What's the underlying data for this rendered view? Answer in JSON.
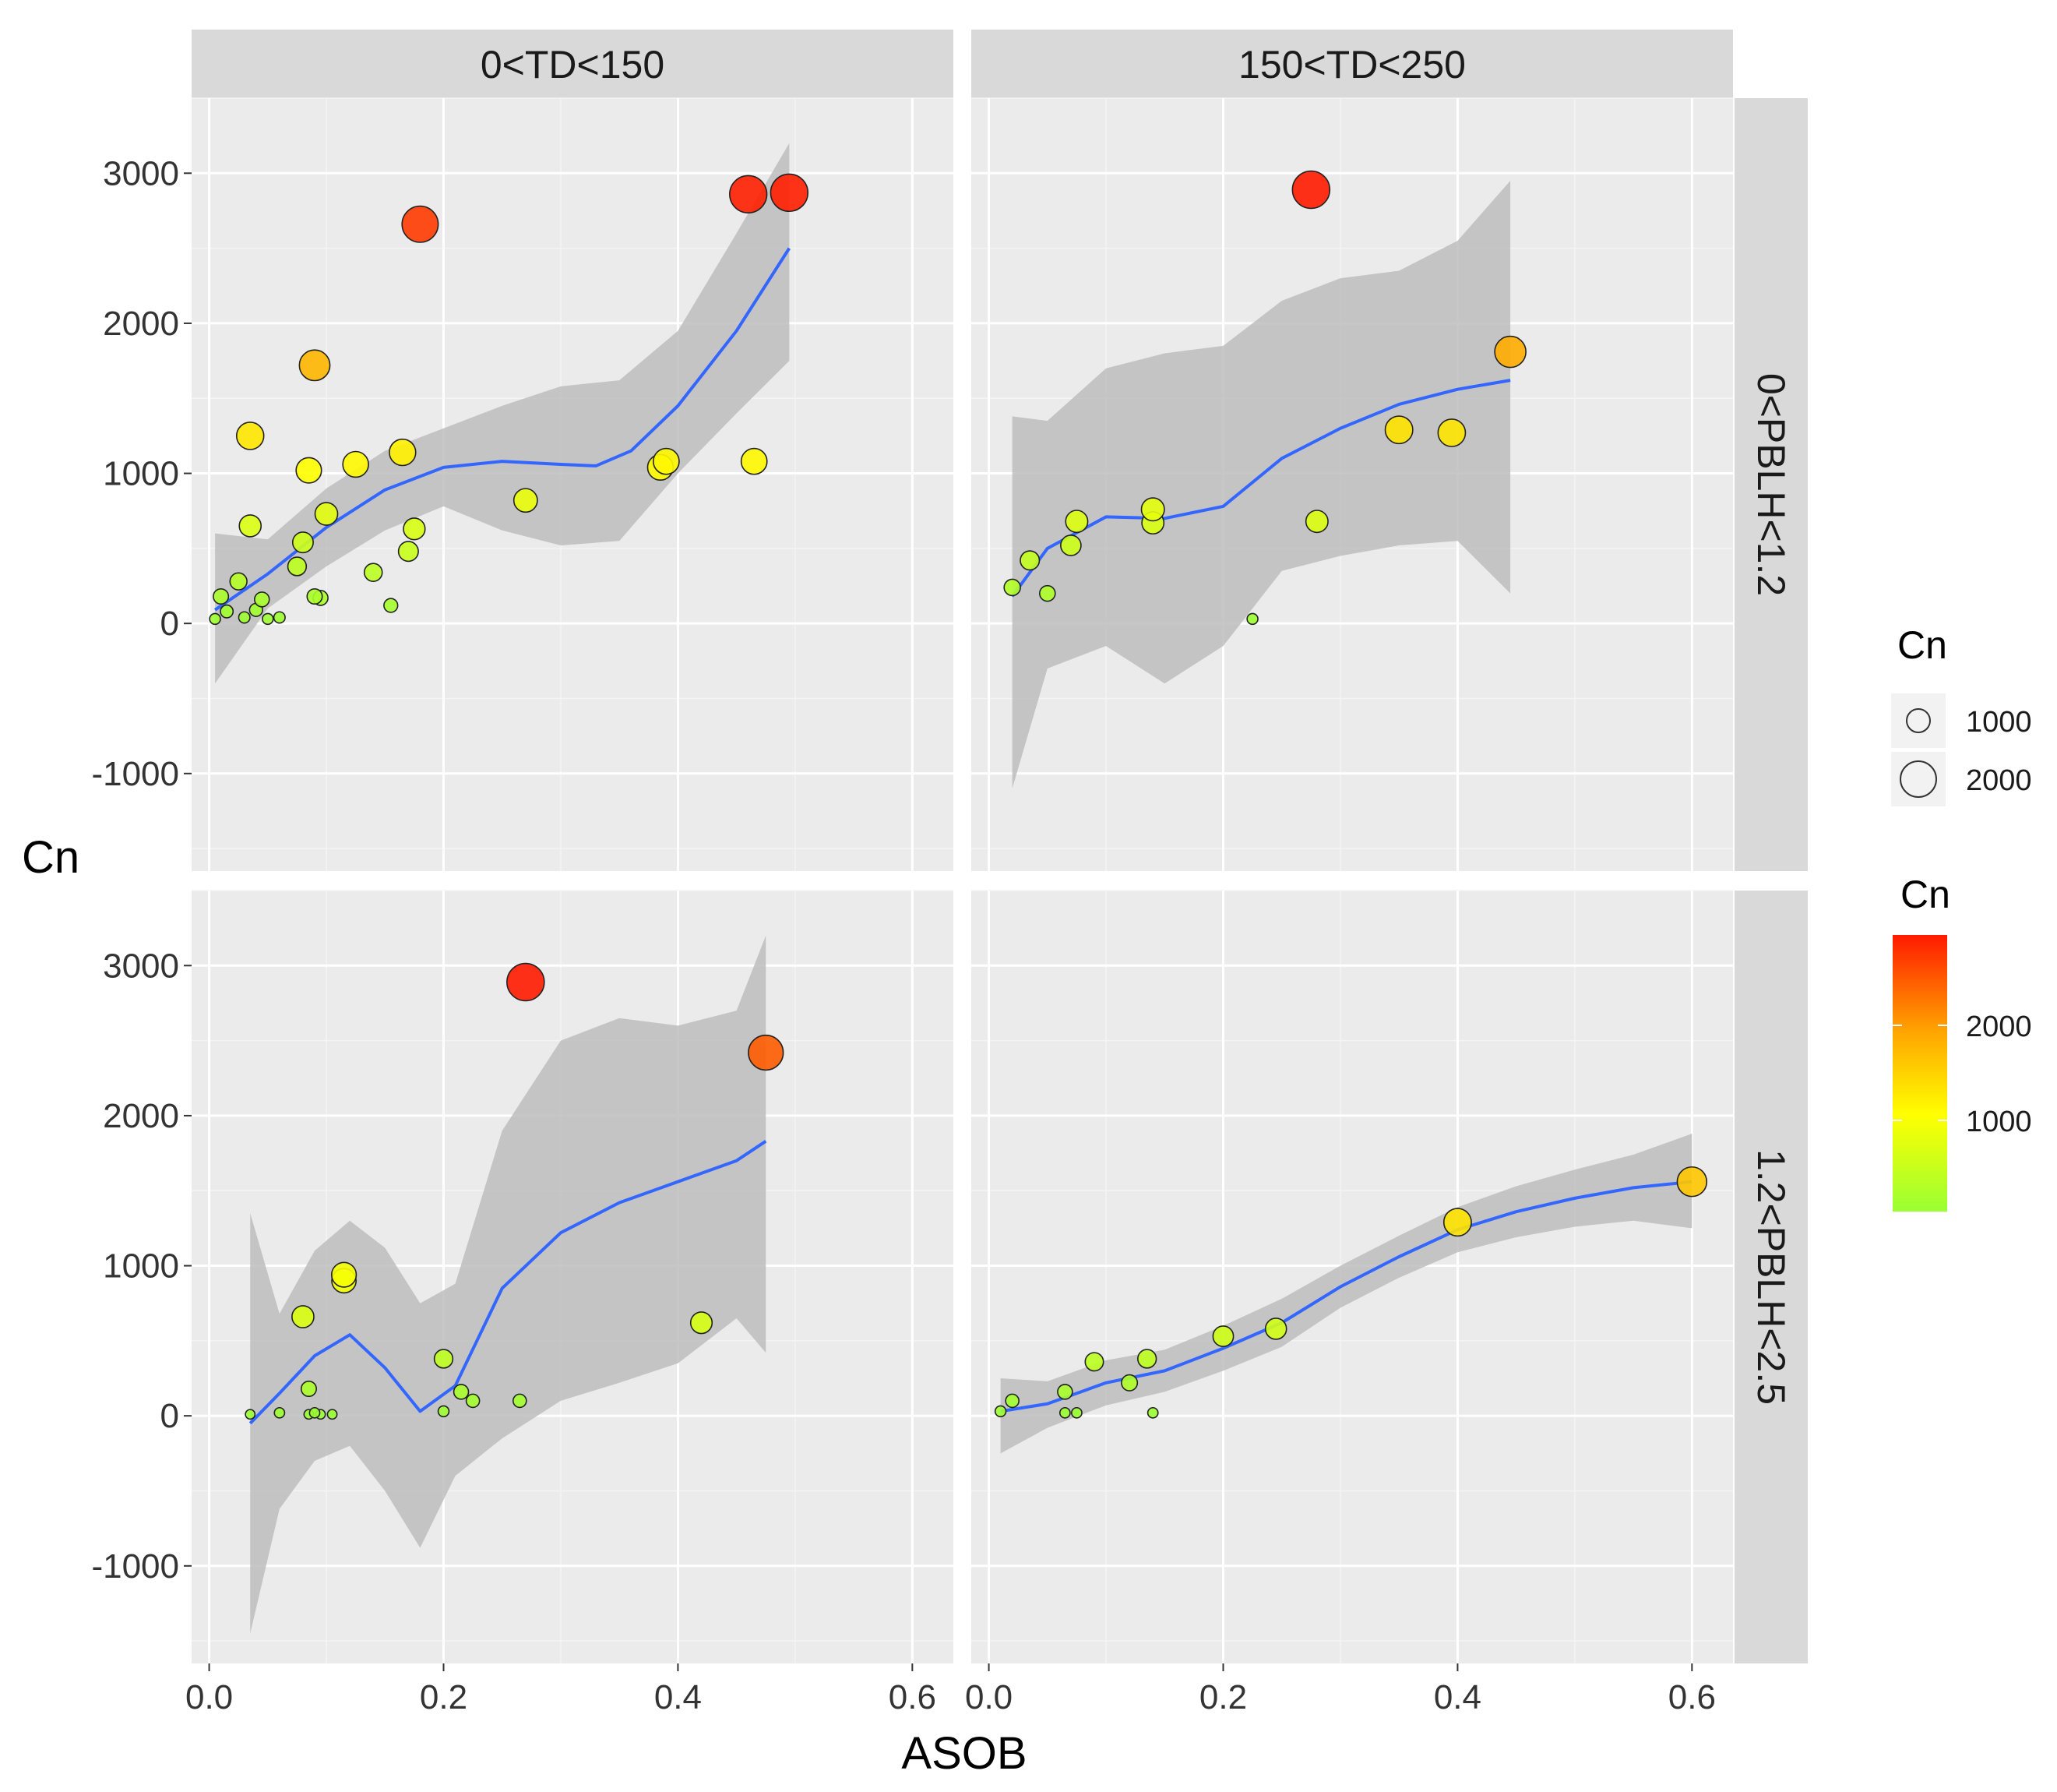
{
  "chart_data": {
    "type": "scatter",
    "title": "",
    "xlabel": "ASOB",
    "ylabel": "Cn",
    "xlim": [
      -0.015,
      0.635
    ],
    "ylim": [
      -1650,
      3500
    ],
    "x_ticks": [
      "0.0",
      "0.2",
      "0.4",
      "0.6"
    ],
    "x_tick_values": [
      0,
      0.2,
      0.4,
      0.6
    ],
    "y_ticks": [
      "-1000",
      "0",
      "1000",
      "2000",
      "3000"
    ],
    "y_tick_values": [
      -1000,
      0,
      1000,
      2000,
      3000
    ],
    "grid": true,
    "facet_cols": [
      "0<TD<150",
      "150<TD<250"
    ],
    "facet_rows": [
      "0<PBLH<1.2",
      "1.2<PBLH<2.5"
    ],
    "size_legend": {
      "title": "Cn",
      "labels": [
        "1000",
        "2000"
      ],
      "values": [
        1000,
        2000
      ]
    },
    "color_legend": {
      "title": "Cn",
      "labels": [
        "1000",
        "2000"
      ],
      "values": [
        1000,
        2000
      ],
      "range": [
        0,
        2900
      ],
      "low_color": "#99ff33",
      "mid_color": "#ffff00",
      "high_color": "#ff1a00"
    },
    "colors": {
      "smooth": "#3366ff",
      "ribbon": "#bdbdbd",
      "panel_bg": "#ebebeb",
      "strip_bg": "#d9d9d9"
    },
    "panels": [
      {
        "col": 0,
        "row": 0,
        "points": [
          {
            "x": 0.005,
            "y": 30
          },
          {
            "x": 0.01,
            "y": 180
          },
          {
            "x": 0.015,
            "y": 80
          },
          {
            "x": 0.025,
            "y": 280
          },
          {
            "x": 0.03,
            "y": 40
          },
          {
            "x": 0.035,
            "y": 650
          },
          {
            "x": 0.035,
            "y": 1250
          },
          {
            "x": 0.04,
            "y": 90
          },
          {
            "x": 0.045,
            "y": 160
          },
          {
            "x": 0.05,
            "y": 30
          },
          {
            "x": 0.06,
            "y": 40
          },
          {
            "x": 0.075,
            "y": 380
          },
          {
            "x": 0.08,
            "y": 540
          },
          {
            "x": 0.085,
            "y": 1020
          },
          {
            "x": 0.09,
            "y": 180
          },
          {
            "x": 0.09,
            "y": 1720
          },
          {
            "x": 0.095,
            "y": 170
          },
          {
            "x": 0.1,
            "y": 730
          },
          {
            "x": 0.125,
            "y": 1060
          },
          {
            "x": 0.14,
            "y": 340
          },
          {
            "x": 0.155,
            "y": 120
          },
          {
            "x": 0.165,
            "y": 1140
          },
          {
            "x": 0.17,
            "y": 480
          },
          {
            "x": 0.175,
            "y": 630
          },
          {
            "x": 0.18,
            "y": 2660
          },
          {
            "x": 0.27,
            "y": 820
          },
          {
            "x": 0.385,
            "y": 1040
          },
          {
            "x": 0.39,
            "y": 1080
          },
          {
            "x": 0.46,
            "y": 2860
          },
          {
            "x": 0.465,
            "y": 1080
          },
          {
            "x": 0.495,
            "y": 2870
          }
        ],
        "smooth": [
          {
            "x": 0.005,
            "y": 90
          },
          {
            "x": 0.05,
            "y": 330
          },
          {
            "x": 0.1,
            "y": 640
          },
          {
            "x": 0.15,
            "y": 890
          },
          {
            "x": 0.2,
            "y": 1040
          },
          {
            "x": 0.25,
            "y": 1080
          },
          {
            "x": 0.3,
            "y": 1060
          },
          {
            "x": 0.33,
            "y": 1050
          },
          {
            "x": 0.36,
            "y": 1150
          },
          {
            "x": 0.4,
            "y": 1450
          },
          {
            "x": 0.45,
            "y": 1950
          },
          {
            "x": 0.495,
            "y": 2500
          }
        ],
        "ribbon_upper": [
          {
            "x": 0.005,
            "y": 600
          },
          {
            "x": 0.05,
            "y": 560
          },
          {
            "x": 0.1,
            "y": 900
          },
          {
            "x": 0.15,
            "y": 1150
          },
          {
            "x": 0.2,
            "y": 1300
          },
          {
            "x": 0.25,
            "y": 1450
          },
          {
            "x": 0.3,
            "y": 1580
          },
          {
            "x": 0.35,
            "y": 1620
          },
          {
            "x": 0.4,
            "y": 1950
          },
          {
            "x": 0.45,
            "y": 2600
          },
          {
            "x": 0.495,
            "y": 3200
          }
        ],
        "ribbon_lower": [
          {
            "x": 0.005,
            "y": -400
          },
          {
            "x": 0.05,
            "y": 100
          },
          {
            "x": 0.1,
            "y": 380
          },
          {
            "x": 0.15,
            "y": 620
          },
          {
            "x": 0.2,
            "y": 780
          },
          {
            "x": 0.25,
            "y": 620
          },
          {
            "x": 0.3,
            "y": 520
          },
          {
            "x": 0.35,
            "y": 550
          },
          {
            "x": 0.4,
            "y": 1000
          },
          {
            "x": 0.45,
            "y": 1400
          },
          {
            "x": 0.495,
            "y": 1750
          }
        ]
      },
      {
        "col": 1,
        "row": 0,
        "points": [
          {
            "x": 0.02,
            "y": 240
          },
          {
            "x": 0.035,
            "y": 420
          },
          {
            "x": 0.05,
            "y": 200
          },
          {
            "x": 0.07,
            "y": 520
          },
          {
            "x": 0.075,
            "y": 680
          },
          {
            "x": 0.14,
            "y": 760
          },
          {
            "x": 0.14,
            "y": 670
          },
          {
            "x": 0.225,
            "y": 30
          },
          {
            "x": 0.275,
            "y": 2890
          },
          {
            "x": 0.28,
            "y": 680
          },
          {
            "x": 0.35,
            "y": 1290
          },
          {
            "x": 0.395,
            "y": 1270
          },
          {
            "x": 0.445,
            "y": 1810
          }
        ],
        "smooth": [
          {
            "x": 0.02,
            "y": 180
          },
          {
            "x": 0.05,
            "y": 500
          },
          {
            "x": 0.1,
            "y": 710
          },
          {
            "x": 0.15,
            "y": 700
          },
          {
            "x": 0.2,
            "y": 780
          },
          {
            "x": 0.25,
            "y": 1100
          },
          {
            "x": 0.3,
            "y": 1300
          },
          {
            "x": 0.35,
            "y": 1460
          },
          {
            "x": 0.4,
            "y": 1560
          },
          {
            "x": 0.445,
            "y": 1620
          }
        ],
        "ribbon_upper": [
          {
            "x": 0.02,
            "y": 1380
          },
          {
            "x": 0.05,
            "y": 1350
          },
          {
            "x": 0.1,
            "y": 1700
          },
          {
            "x": 0.15,
            "y": 1800
          },
          {
            "x": 0.2,
            "y": 1850
          },
          {
            "x": 0.25,
            "y": 2150
          },
          {
            "x": 0.3,
            "y": 2300
          },
          {
            "x": 0.35,
            "y": 2350
          },
          {
            "x": 0.4,
            "y": 2550
          },
          {
            "x": 0.445,
            "y": 2950
          }
        ],
        "ribbon_lower": [
          {
            "x": 0.02,
            "y": -1100
          },
          {
            "x": 0.05,
            "y": -300
          },
          {
            "x": 0.1,
            "y": -150
          },
          {
            "x": 0.15,
            "y": -400
          },
          {
            "x": 0.2,
            "y": -150
          },
          {
            "x": 0.25,
            "y": 350
          },
          {
            "x": 0.3,
            "y": 450
          },
          {
            "x": 0.35,
            "y": 520
          },
          {
            "x": 0.4,
            "y": 550
          },
          {
            "x": 0.445,
            "y": 200
          }
        ]
      },
      {
        "col": 0,
        "row": 1,
        "points": [
          {
            "x": 0.035,
            "y": 10
          },
          {
            "x": 0.06,
            "y": 20
          },
          {
            "x": 0.08,
            "y": 660
          },
          {
            "x": 0.085,
            "y": 180
          },
          {
            "x": 0.085,
            "y": 10
          },
          {
            "x": 0.09,
            "y": 20
          },
          {
            "x": 0.095,
            "y": 10
          },
          {
            "x": 0.105,
            "y": 10
          },
          {
            "x": 0.115,
            "y": 900
          },
          {
            "x": 0.115,
            "y": 940
          },
          {
            "x": 0.2,
            "y": 380
          },
          {
            "x": 0.2,
            "y": 30
          },
          {
            "x": 0.215,
            "y": 160
          },
          {
            "x": 0.225,
            "y": 100
          },
          {
            "x": 0.265,
            "y": 100
          },
          {
            "x": 0.27,
            "y": 2890
          },
          {
            "x": 0.42,
            "y": 620
          },
          {
            "x": 0.475,
            "y": 2420
          }
        ],
        "smooth": [
          {
            "x": 0.035,
            "y": -50
          },
          {
            "x": 0.06,
            "y": 150
          },
          {
            "x": 0.09,
            "y": 400
          },
          {
            "x": 0.12,
            "y": 540
          },
          {
            "x": 0.15,
            "y": 320
          },
          {
            "x": 0.18,
            "y": 30
          },
          {
            "x": 0.21,
            "y": 200
          },
          {
            "x": 0.25,
            "y": 850
          },
          {
            "x": 0.3,
            "y": 1220
          },
          {
            "x": 0.35,
            "y": 1420
          },
          {
            "x": 0.4,
            "y": 1560
          },
          {
            "x": 0.45,
            "y": 1700
          },
          {
            "x": 0.475,
            "y": 1830
          }
        ],
        "ribbon_upper": [
          {
            "x": 0.035,
            "y": 1350
          },
          {
            "x": 0.06,
            "y": 680
          },
          {
            "x": 0.09,
            "y": 1100
          },
          {
            "x": 0.12,
            "y": 1300
          },
          {
            "x": 0.15,
            "y": 1120
          },
          {
            "x": 0.18,
            "y": 750
          },
          {
            "x": 0.21,
            "y": 880
          },
          {
            "x": 0.25,
            "y": 1900
          },
          {
            "x": 0.3,
            "y": 2500
          },
          {
            "x": 0.35,
            "y": 2650
          },
          {
            "x": 0.4,
            "y": 2600
          },
          {
            "x": 0.45,
            "y": 2700
          },
          {
            "x": 0.475,
            "y": 3200
          }
        ],
        "ribbon_lower": [
          {
            "x": 0.035,
            "y": -1450
          },
          {
            "x": 0.06,
            "y": -620
          },
          {
            "x": 0.09,
            "y": -300
          },
          {
            "x": 0.12,
            "y": -200
          },
          {
            "x": 0.15,
            "y": -500
          },
          {
            "x": 0.18,
            "y": -880
          },
          {
            "x": 0.21,
            "y": -400
          },
          {
            "x": 0.25,
            "y": -150
          },
          {
            "x": 0.3,
            "y": 100
          },
          {
            "x": 0.35,
            "y": 220
          },
          {
            "x": 0.4,
            "y": 350
          },
          {
            "x": 0.45,
            "y": 650
          },
          {
            "x": 0.475,
            "y": 420
          }
        ]
      },
      {
        "col": 1,
        "row": 1,
        "points": [
          {
            "x": 0.01,
            "y": 30
          },
          {
            "x": 0.02,
            "y": 100
          },
          {
            "x": 0.065,
            "y": 160
          },
          {
            "x": 0.065,
            "y": 20
          },
          {
            "x": 0.075,
            "y": 20
          },
          {
            "x": 0.09,
            "y": 360
          },
          {
            "x": 0.12,
            "y": 220
          },
          {
            "x": 0.135,
            "y": 380
          },
          {
            "x": 0.14,
            "y": 20
          },
          {
            "x": 0.2,
            "y": 530
          },
          {
            "x": 0.245,
            "y": 580
          },
          {
            "x": 0.4,
            "y": 1290
          },
          {
            "x": 0.6,
            "y": 1560
          }
        ],
        "smooth": [
          {
            "x": 0.01,
            "y": 30
          },
          {
            "x": 0.05,
            "y": 80
          },
          {
            "x": 0.1,
            "y": 220
          },
          {
            "x": 0.15,
            "y": 300
          },
          {
            "x": 0.2,
            "y": 450
          },
          {
            "x": 0.25,
            "y": 620
          },
          {
            "x": 0.3,
            "y": 860
          },
          {
            "x": 0.35,
            "y": 1060
          },
          {
            "x": 0.4,
            "y": 1240
          },
          {
            "x": 0.45,
            "y": 1360
          },
          {
            "x": 0.5,
            "y": 1450
          },
          {
            "x": 0.55,
            "y": 1520
          },
          {
            "x": 0.6,
            "y": 1560
          }
        ],
        "ribbon_upper": [
          {
            "x": 0.01,
            "y": 250
          },
          {
            "x": 0.05,
            "y": 230
          },
          {
            "x": 0.1,
            "y": 370
          },
          {
            "x": 0.15,
            "y": 440
          },
          {
            "x": 0.2,
            "y": 600
          },
          {
            "x": 0.25,
            "y": 780
          },
          {
            "x": 0.3,
            "y": 1000
          },
          {
            "x": 0.35,
            "y": 1200
          },
          {
            "x": 0.4,
            "y": 1390
          },
          {
            "x": 0.45,
            "y": 1530
          },
          {
            "x": 0.5,
            "y": 1640
          },
          {
            "x": 0.55,
            "y": 1740
          },
          {
            "x": 0.6,
            "y": 1880
          }
        ],
        "ribbon_lower": [
          {
            "x": 0.01,
            "y": -250
          },
          {
            "x": 0.05,
            "y": -80
          },
          {
            "x": 0.1,
            "y": 70
          },
          {
            "x": 0.15,
            "y": 160
          },
          {
            "x": 0.2,
            "y": 300
          },
          {
            "x": 0.25,
            "y": 460
          },
          {
            "x": 0.3,
            "y": 720
          },
          {
            "x": 0.35,
            "y": 920
          },
          {
            "x": 0.4,
            "y": 1090
          },
          {
            "x": 0.45,
            "y": 1190
          },
          {
            "x": 0.5,
            "y": 1260
          },
          {
            "x": 0.55,
            "y": 1300
          },
          {
            "x": 0.6,
            "y": 1250
          }
        ]
      }
    ]
  }
}
